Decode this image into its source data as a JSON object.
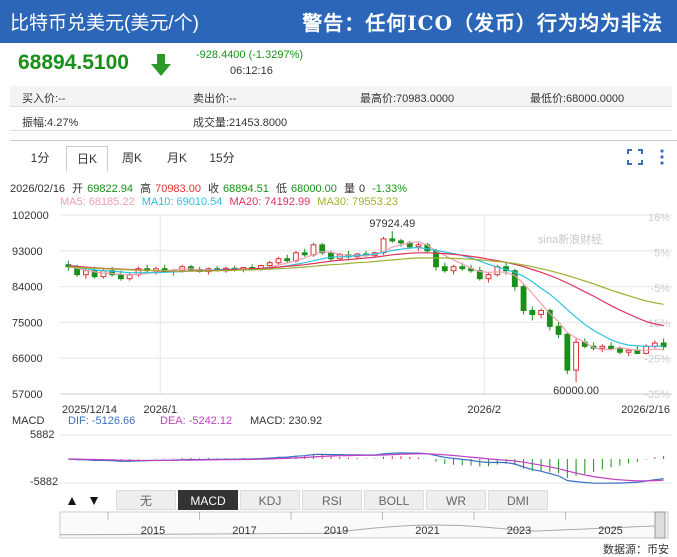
{
  "header": {
    "title": "比特币兑美元(美元/个)",
    "warning": "警告：任何ICO（发币）行为均为非法"
  },
  "quote": {
    "price": "68894.5100",
    "change": "-928.4400 (-1.3297%)",
    "time": "06:12:16"
  },
  "info_row1": {
    "buy": "买入价:--",
    "sell": "卖出价:--",
    "high": "最高价:70983.0000",
    "low": "最低价:68000.0000"
  },
  "info_row2": {
    "amplitude": "振幅:4.27%",
    "volume": "成交量:21453.8000"
  },
  "period_tabs": [
    "1分",
    "日K",
    "周K",
    "月K",
    "15分"
  ],
  "ohlc": {
    "date": "2026/02/16",
    "open_label": "开",
    "open": "69822.94",
    "high_label": "高",
    "high": "70983.00",
    "close_label": "收",
    "close": "68894.51",
    "low_label": "低",
    "low": "68000.00",
    "vol_label": "量",
    "vol": "0",
    "pct": "-1.33%"
  },
  "ma_labels": {
    "ma5": "MA5: 68185.22",
    "ma10": "MA10: 69010.54",
    "ma20": "MA20: 74192.99",
    "ma30": "MA30: 79553.23"
  },
  "macd_labels": {
    "name": "MACD",
    "dif": "DIF: -5126.66",
    "dea": "DEA: -5242.12",
    "macd": "MACD: 230.92",
    "top": "5882",
    "bottom": "-5882"
  },
  "indicator_tabs": [
    "无",
    "MACD",
    "KDJ",
    "RSI",
    "BOLL",
    "WR",
    "DMI"
  ],
  "navigator_years": [
    "2015",
    "2017",
    "2019",
    "2021",
    "2023",
    "2025"
  ],
  "source": "数据源：币安",
  "watermark": "sina新浪财经",
  "colors": {
    "up": "#e0312f",
    "down": "#1a8f1a",
    "ma5": "#f0a0b4",
    "ma10": "#2ec0e0",
    "ma20": "#e0305a",
    "ma30": "#a0b030",
    "header": "#2b66b8"
  },
  "chart_data": {
    "type": "candlestick",
    "x_tick_labels": [
      "2025/12/14",
      "2026/1",
      "2026/2",
      "2026/2/16"
    ],
    "y_ticks": [
      57000,
      66000,
      75000,
      84000,
      93000,
      102000
    ],
    "y_pct_ticks": [
      "16%",
      "5%",
      "-5%",
      "-15%",
      "-25%",
      "-35%"
    ],
    "ylim": [
      57000,
      102000
    ],
    "annotations": [
      {
        "label": "97924.49",
        "value": 97924.49
      },
      {
        "label": "60000.00",
        "value": 60000
      }
    ],
    "candles": [
      [
        89500,
        90500,
        88000,
        89000
      ],
      [
        89000,
        89500,
        86500,
        87000
      ],
      [
        87000,
        88500,
        86000,
        88000
      ],
      [
        88000,
        89000,
        86000,
        86500
      ],
      [
        86500,
        88500,
        86000,
        88000
      ],
      [
        88000,
        89000,
        86500,
        87000
      ],
      [
        87000,
        88000,
        85500,
        86000
      ],
      [
        86000,
        87500,
        85500,
        87000
      ],
      [
        87000,
        89000,
        86500,
        88500
      ],
      [
        88500,
        89500,
        87500,
        88000
      ],
      [
        88000,
        89000,
        87000,
        88500
      ],
      [
        88500,
        89500,
        87500,
        87800
      ],
      [
        87800,
        88500,
        86800,
        88000
      ],
      [
        88000,
        89500,
        87500,
        89000
      ],
      [
        89000,
        89500,
        88000,
        88300
      ],
      [
        88300,
        89000,
        87500,
        87800
      ],
      [
        87800,
        88800,
        87000,
        88500
      ],
      [
        88500,
        89200,
        87800,
        88000
      ],
      [
        88000,
        89000,
        87500,
        88600
      ],
      [
        88600,
        89300,
        87800,
        88200
      ],
      [
        88200,
        89000,
        87600,
        88800
      ],
      [
        88800,
        89600,
        88200,
        88400
      ],
      [
        88400,
        89500,
        88000,
        89300
      ],
      [
        89300,
        90500,
        88800,
        90000
      ],
      [
        90000,
        91500,
        89500,
        91000
      ],
      [
        91000,
        92000,
        90000,
        90500
      ],
      [
        90500,
        93000,
        90000,
        92500
      ],
      [
        92500,
        93500,
        91500,
        92000
      ],
      [
        92000,
        95000,
        91500,
        94500
      ],
      [
        94500,
        95000,
        92000,
        92500
      ],
      [
        92500,
        93000,
        90500,
        91000
      ],
      [
        91000,
        92500,
        90500,
        92000
      ],
      [
        92000,
        93000,
        91000,
        91500
      ],
      [
        91500,
        92500,
        90800,
        92200
      ],
      [
        92200,
        93000,
        91500,
        91800
      ],
      [
        91800,
        92800,
        91200,
        92500
      ],
      [
        92500,
        96500,
        92000,
        96000
      ],
      [
        96000,
        97924.49,
        95000,
        95500
      ],
      [
        95500,
        96000,
        94000,
        95000
      ],
      [
        95000,
        95500,
        93500,
        94000
      ],
      [
        94000,
        95000,
        93000,
        94500
      ],
      [
        94500,
        95000,
        92500,
        93000
      ],
      [
        93000,
        93500,
        88000,
        89000
      ],
      [
        89000,
        90000,
        87500,
        88000
      ],
      [
        88000,
        89500,
        87000,
        89000
      ],
      [
        89000,
        90000,
        88000,
        88500
      ],
      [
        88500,
        89500,
        87500,
        88000
      ],
      [
        88000,
        89000,
        85500,
        86000
      ],
      [
        86000,
        87500,
        85000,
        87000
      ],
      [
        87000,
        89500,
        86500,
        89000
      ],
      [
        89000,
        90000,
        87000,
        88000
      ],
      [
        88000,
        88500,
        83000,
        84000
      ],
      [
        84000,
        84500,
        77000,
        78000
      ],
      [
        78000,
        79000,
        75500,
        77000
      ],
      [
        77000,
        78500,
        76000,
        78000
      ],
      [
        78000,
        78500,
        73000,
        74000
      ],
      [
        74000,
        75000,
        71000,
        72000
      ],
      [
        72000,
        72500,
        62000,
        63000
      ],
      [
        63000,
        71000,
        60000,
        70000
      ],
      [
        70000,
        71000,
        68500,
        69000
      ],
      [
        69000,
        70000,
        68000,
        68500
      ],
      [
        68500,
        69500,
        67500,
        69000
      ],
      [
        69000,
        70000,
        68000,
        68300
      ],
      [
        68300,
        69000,
        67000,
        67500
      ],
      [
        67500,
        68500,
        66500,
        68000
      ],
      [
        68000,
        69000,
        67000,
        67200
      ],
      [
        67200,
        69500,
        67000,
        69000
      ],
      [
        69000,
        70500,
        68500,
        69800
      ],
      [
        69822.94,
        70983,
        68000,
        68894.51
      ]
    ],
    "series": [
      {
        "name": "MA5",
        "values": [
          89200,
          88600,
          88100,
          87700,
          87400,
          87300,
          87100,
          86900,
          87100,
          87300,
          87700,
          88000,
          88200,
          88400,
          88500,
          88200,
          88100,
          88100,
          88200,
          88300,
          88300,
          88400,
          88600,
          88900,
          89400,
          89900,
          90600,
          91200,
          92100,
          92800,
          92600,
          92200,
          91900,
          91700,
          91800,
          92000,
          92800,
          93900,
          94500,
          95000,
          95300,
          94400,
          93000,
          91800,
          90700,
          89700,
          88600,
          87800,
          87600,
          87700,
          87600,
          86800,
          84700,
          82300,
          79700,
          77200,
          75200,
          72400,
          71100,
          70000,
          68700,
          68000,
          68200,
          68700,
          68300,
          68000,
          68000,
          68300,
          68185.22
        ]
      },
      {
        "name": "MA10",
        "values": [
          89000,
          88800,
          88500,
          88200,
          88000,
          87900,
          87700,
          87500,
          87500,
          87500,
          87500,
          87600,
          87700,
          87800,
          87900,
          88000,
          88100,
          88200,
          88300,
          88400,
          88400,
          88400,
          88500,
          88700,
          88900,
          89200,
          89600,
          90000,
          90500,
          91000,
          91400,
          91500,
          91600,
          91800,
          92000,
          92200,
          92600,
          93100,
          93400,
          93700,
          93800,
          93500,
          93100,
          92700,
          92300,
          91800,
          91200,
          90400,
          89600,
          88900,
          88300,
          87600,
          86600,
          85200,
          83600,
          82100,
          80200,
          78200,
          76300,
          74500,
          73000,
          71800,
          70600,
          69800,
          69300,
          69100,
          69000,
          69000,
          69010.54
        ]
      },
      {
        "name": "MA20",
        "values": [
          89300,
          89100,
          88900,
          88700,
          88600,
          88500,
          88400,
          88300,
          88200,
          88100,
          88000,
          87900,
          87900,
          87900,
          88000,
          88000,
          88000,
          88100,
          88200,
          88300,
          88400,
          88500,
          88600,
          88700,
          88900,
          89100,
          89300,
          89500,
          89800,
          90100,
          90400,
          90600,
          90800,
          91000,
          91200,
          91400,
          91700,
          92000,
          92200,
          92400,
          92500,
          92500,
          92400,
          92300,
          92100,
          91900,
          91600,
          91300,
          90900,
          90500,
          90100,
          89600,
          89000,
          88300,
          87600,
          86800,
          85900,
          84900,
          83800,
          82700,
          81600,
          80400,
          79200,
          78100,
          77100,
          76100,
          75200,
          74600,
          74192.99
        ]
      },
      {
        "name": "MA30",
        "values": [
          88900,
          88800,
          88700,
          88600,
          88500,
          88400,
          88300,
          88200,
          88100,
          88100,
          88000,
          88000,
          87900,
          87900,
          87900,
          87900,
          87900,
          88000,
          88000,
          88100,
          88200,
          88200,
          88300,
          88400,
          88500,
          88600,
          88800,
          88900,
          89100,
          89300,
          89500,
          89600,
          89800,
          90000,
          90100,
          90300,
          90500,
          90700,
          90900,
          91100,
          91200,
          91200,
          91200,
          91200,
          91100,
          91000,
          90900,
          90700,
          90500,
          90300,
          90100,
          89800,
          89400,
          89000,
          88500,
          88000,
          87400,
          86800,
          86100,
          85400,
          84700,
          83900,
          83100,
          82400,
          81700,
          81000,
          80400,
          79900,
          79553.23
        ]
      }
    ]
  }
}
